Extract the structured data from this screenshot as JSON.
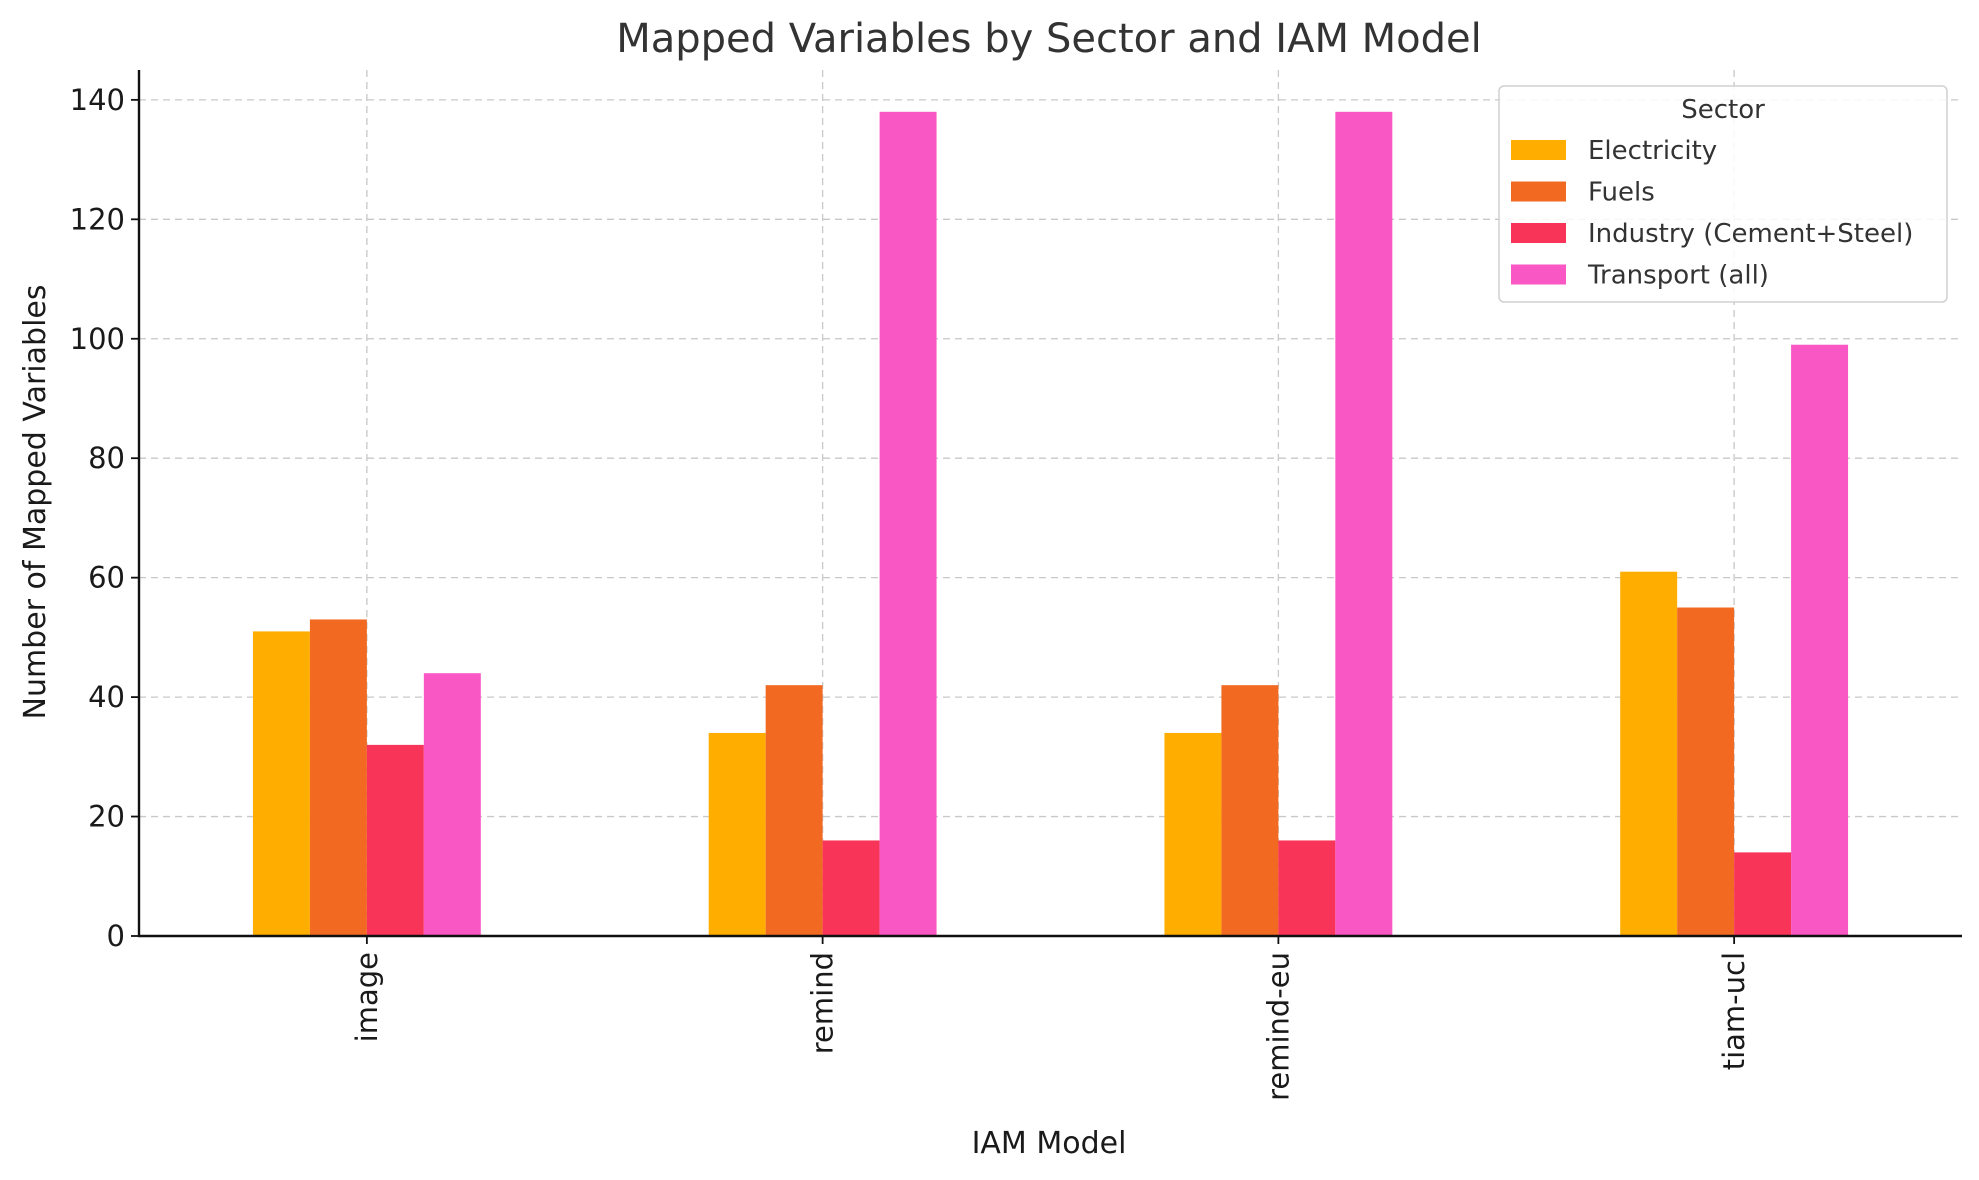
{
  "chart_data": {
    "type": "bar",
    "title": "Mapped Variables by Sector and IAM Model",
    "xlabel": "IAM Model",
    "ylabel": "Number of Mapped Variables",
    "categories": [
      "image",
      "remind",
      "remind-eu",
      "tiam-ucl"
    ],
    "series": [
      {
        "name": "Electricity",
        "color": "#FFAE00",
        "values": [
          51,
          34,
          34,
          61
        ]
      },
      {
        "name": "Fuels",
        "color": "#F26A21",
        "values": [
          53,
          42,
          42,
          55
        ]
      },
      {
        "name": "Industry (Cement+Steel)",
        "color": "#F83559",
        "values": [
          32,
          16,
          16,
          14
        ]
      },
      {
        "name": "Transport (all)",
        "color": "#F957C3",
        "values": [
          44,
          138,
          138,
          99
        ]
      }
    ],
    "ylim": [
      0,
      145
    ],
    "yticks": [
      0,
      20,
      40,
      60,
      80,
      100,
      120,
      140
    ],
    "grid": true,
    "legend": {
      "title": "Sector",
      "position": "top-right"
    }
  }
}
